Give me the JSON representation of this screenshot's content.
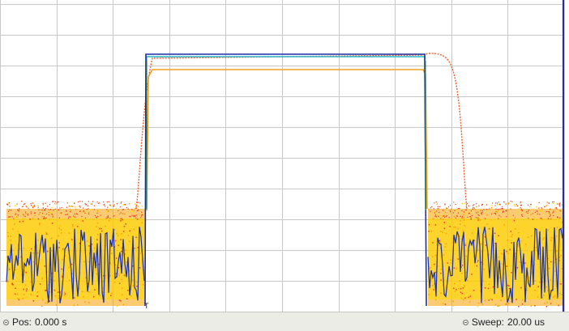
{
  "trigger_marker": "T",
  "status": {
    "pos_label": "Pos:",
    "pos_value": "0.000 s",
    "sweep_label": "Sweep:",
    "sweep_value": "20.00 us"
  },
  "colors": {
    "grid": "#c8c8c8",
    "trace_blue": "#1a2fa8",
    "trace_cyan": "#27b8cc",
    "trace_orange": "#f0a020",
    "trace_red_orange": "#f06030",
    "noise_yellow": "#ffd800",
    "noise_orange": "#f7a000",
    "noise_red": "#e84020",
    "right_edge_bar": "#2c2c8a"
  }
}
